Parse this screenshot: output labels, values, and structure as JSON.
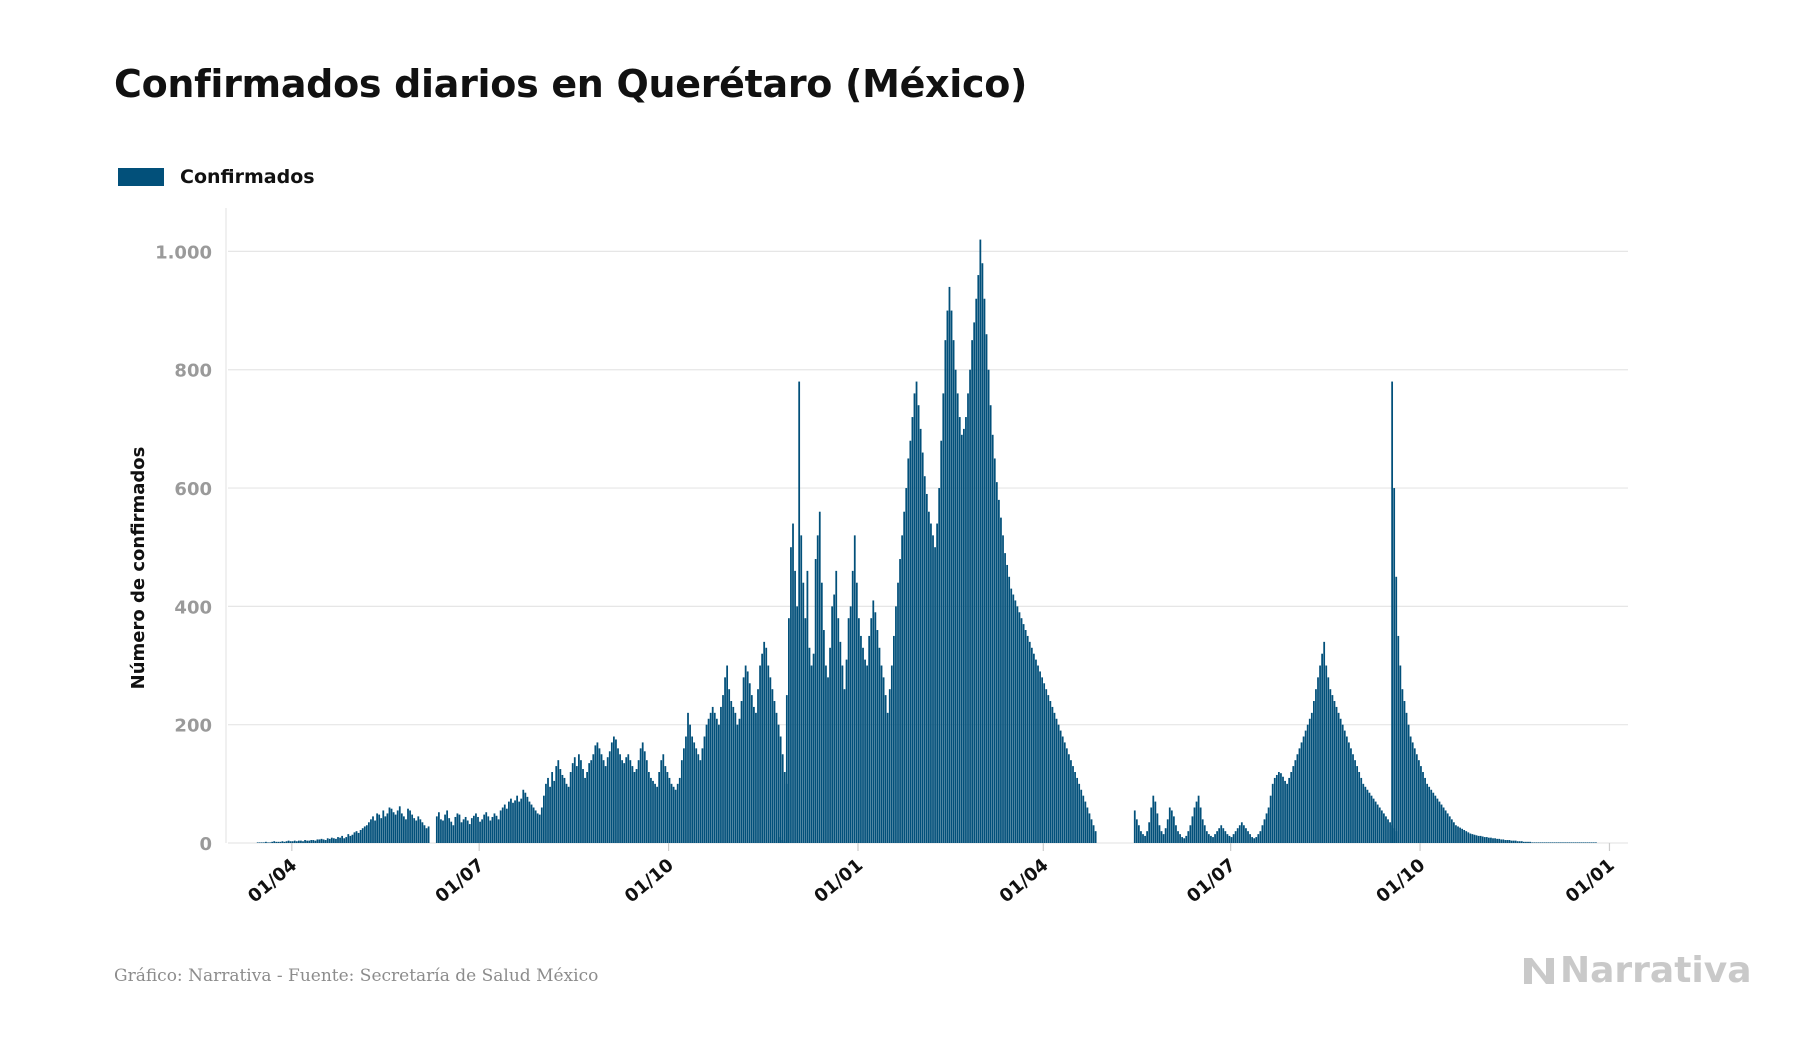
{
  "title": "Confirmados diarios en Querétaro (México)",
  "source": "Gráfico: Narrativa - Fuente: Secretaría de Salud México",
  "brand": "Narrativa",
  "colors": {
    "bar": "#02507a",
    "grid": "#e6e6e6",
    "axis_text": "#9a9a9a",
    "text": "#111111",
    "brand": "#c9c9c9"
  },
  "chart_data": {
    "type": "bar",
    "title": "Confirmados diarios en Querétaro (México)",
    "xlabel": "",
    "ylabel": "Número de confirmados",
    "series": [
      {
        "name": "Confirmados"
      }
    ],
    "legend": "top-left",
    "grid": true,
    "ylim": [
      0,
      1070
    ],
    "y_ticks": [
      0,
      200,
      400,
      600,
      800,
      1000
    ],
    "y_tick_labels": [
      "0",
      "200",
      "400",
      "600",
      "800",
      "1.000"
    ],
    "x_range": [
      "2020-03-01",
      "2022-01-10"
    ],
    "x_ticks": [
      "2020-04-01",
      "2020-07-01",
      "2020-10-01",
      "2021-01-01",
      "2021-04-01",
      "2021-07-01",
      "2021-10-01",
      "2022-01-01"
    ],
    "x_tick_labels": [
      "01/04",
      "01/07",
      "01/10",
      "01/01",
      "01/04",
      "01/07",
      "01/10",
      "01/01"
    ],
    "segments": [
      {
        "start": "2020-03-15",
        "values": [
          1,
          1,
          1,
          1,
          2,
          1,
          1,
          2,
          3,
          2,
          2,
          2,
          3,
          2,
          3,
          4,
          3,
          3,
          4,
          3,
          4,
          4,
          3,
          5,
          4,
          4,
          5,
          5,
          4,
          6,
          6,
          7,
          6,
          5,
          8,
          7,
          9,
          8,
          7,
          10,
          9,
          12,
          8,
          10,
          15,
          12,
          14,
          18,
          20,
          17,
          22,
          25,
          28,
          30,
          35,
          40,
          45,
          38,
          50,
          48,
          42,
          55,
          45,
          50,
          60,
          58,
          52,
          48,
          55,
          62,
          50,
          45,
          40,
          58,
          55,
          48,
          42,
          38,
          45,
          40,
          35,
          30,
          25,
          28
        ]
      },
      {
        "start": "2020-06-10",
        "values": [
          45,
          52,
          40,
          38,
          48,
          55,
          42,
          36,
          30,
          44,
          50,
          48,
          35,
          40,
          44,
          38,
          32,
          42,
          46,
          50,
          44,
          36,
          40,
          48,
          52,
          45,
          38,
          44,
          50,
          46,
          40,
          55,
          60,
          65,
          58,
          70,
          75,
          68,
          72,
          80,
          70,
          75,
          90,
          85,
          78,
          70,
          65,
          60,
          55,
          50,
          48,
          60,
          80,
          100,
          110,
          95,
          120,
          105,
          130,
          140,
          125,
          115,
          110,
          100,
          95,
          120,
          135,
          145,
          130,
          150,
          140,
          125,
          110,
          120,
          135,
          140,
          150,
          165,
          170,
          160,
          150,
          140,
          130,
          145,
          155,
          170,
          180,
          175,
          160,
          150,
          140,
          135,
          145,
          150,
          140,
          130,
          120,
          125,
          140,
          160,
          170,
          155,
          140,
          120,
          110,
          105,
          100,
          95,
          120,
          140,
          150,
          130,
          120,
          110,
          100,
          95,
          90,
          100,
          110,
          140,
          160,
          180,
          220,
          200,
          180,
          170,
          160,
          150,
          140,
          160,
          180,
          200,
          210,
          220,
          230,
          220,
          210,
          200,
          230,
          250,
          280,
          300,
          260,
          240,
          230,
          220,
          200,
          210,
          240,
          280,
          300,
          290,
          270,
          250,
          230,
          220,
          260,
          300,
          320,
          340,
          330,
          300,
          280,
          260,
          240,
          220,
          200,
          180,
          150,
          120,
          100
        ]
      },
      {
        "start": "2020-11-24",
        "values": [
          10,
          5,
          2,
          250,
          380,
          500,
          540,
          460,
          400,
          780,
          520,
          440,
          380,
          460,
          330,
          300,
          320,
          480,
          520,
          560,
          440,
          360,
          300,
          280,
          330,
          400,
          420,
          460,
          380,
          340,
          300,
          260,
          310,
          380,
          400,
          460,
          520,
          440,
          380,
          350,
          330,
          310,
          300,
          350,
          380,
          410,
          390,
          360,
          330,
          300,
          280,
          250,
          220,
          260,
          300,
          350,
          400,
          440,
          480,
          520,
          560,
          600,
          650,
          680,
          720,
          760,
          780,
          740,
          700,
          660,
          620,
          590,
          560,
          540,
          520,
          500,
          540,
          600,
          680,
          760,
          850,
          900,
          940,
          900,
          850,
          800,
          760,
          720,
          690,
          700,
          720,
          760,
          800,
          850,
          880,
          920,
          960,
          1020,
          980,
          920,
          860,
          800,
          740,
          690,
          650,
          610,
          580,
          550,
          520,
          490,
          470,
          450,
          430,
          420,
          410,
          400,
          390,
          380,
          370,
          360,
          350,
          340,
          330,
          320,
          310,
          300,
          290,
          280,
          270,
          260,
          250,
          240,
          230,
          220,
          210,
          200,
          190,
          180,
          170,
          160,
          150,
          140,
          130,
          120,
          110,
          100,
          90,
          80,
          70,
          60,
          50,
          40,
          30,
          20
        ]
      },
      {
        "start": "2021-05-15",
        "values": [
          55,
          40,
          30,
          20,
          15,
          12,
          20,
          35,
          60,
          80,
          70,
          50,
          30,
          20,
          15,
          25,
          40,
          60,
          55,
          45,
          30,
          20,
          15,
          10,
          8,
          12,
          20,
          30,
          45,
          60,
          70,
          80,
          60,
          40,
          30,
          20,
          15,
          12,
          10,
          15,
          20,
          25,
          30,
          25,
          20,
          15,
          12,
          10,
          15,
          20,
          25,
          30,
          35,
          30,
          25,
          20,
          15,
          10,
          8,
          10,
          15,
          20,
          30,
          40,
          50,
          60,
          80,
          100,
          110,
          115,
          120,
          118,
          112,
          105,
          100,
          110,
          120,
          130,
          140,
          150,
          160,
          170,
          180,
          190,
          200,
          210,
          220,
          240,
          260,
          280,
          300,
          320,
          340,
          300,
          280,
          260,
          250,
          240,
          230,
          220,
          210,
          200,
          190,
          180,
          170,
          160,
          150,
          140,
          130,
          120,
          110,
          100,
          95,
          90,
          85,
          80,
          75,
          70,
          65,
          60,
          55,
          50,
          45,
          40,
          35,
          30,
          25,
          20
        ]
      },
      {
        "start": "2021-09-17",
        "values": [
          780,
          600,
          450,
          350,
          300,
          260,
          240,
          220,
          200,
          180,
          170,
          160,
          150,
          140,
          130,
          120,
          110,
          100,
          95,
          90,
          85,
          80,
          75,
          70,
          65,
          60,
          55,
          50,
          45,
          40,
          35,
          30,
          28,
          26,
          24,
          22,
          20,
          18,
          16,
          15,
          14,
          13,
          12,
          12,
          11,
          10,
          10,
          9,
          9,
          8,
          8,
          7,
          7,
          6,
          6,
          5,
          5,
          5,
          4,
          4,
          4,
          3,
          3,
          3,
          2,
          2,
          2,
          2,
          1,
          1,
          1,
          1,
          1,
          1,
          1,
          1,
          1,
          1,
          1,
          1,
          1,
          1,
          1,
          1,
          1,
          1,
          1,
          1,
          1,
          1,
          1,
          1,
          1,
          1,
          1,
          1,
          1,
          1,
          1,
          1
        ]
      }
    ]
  }
}
